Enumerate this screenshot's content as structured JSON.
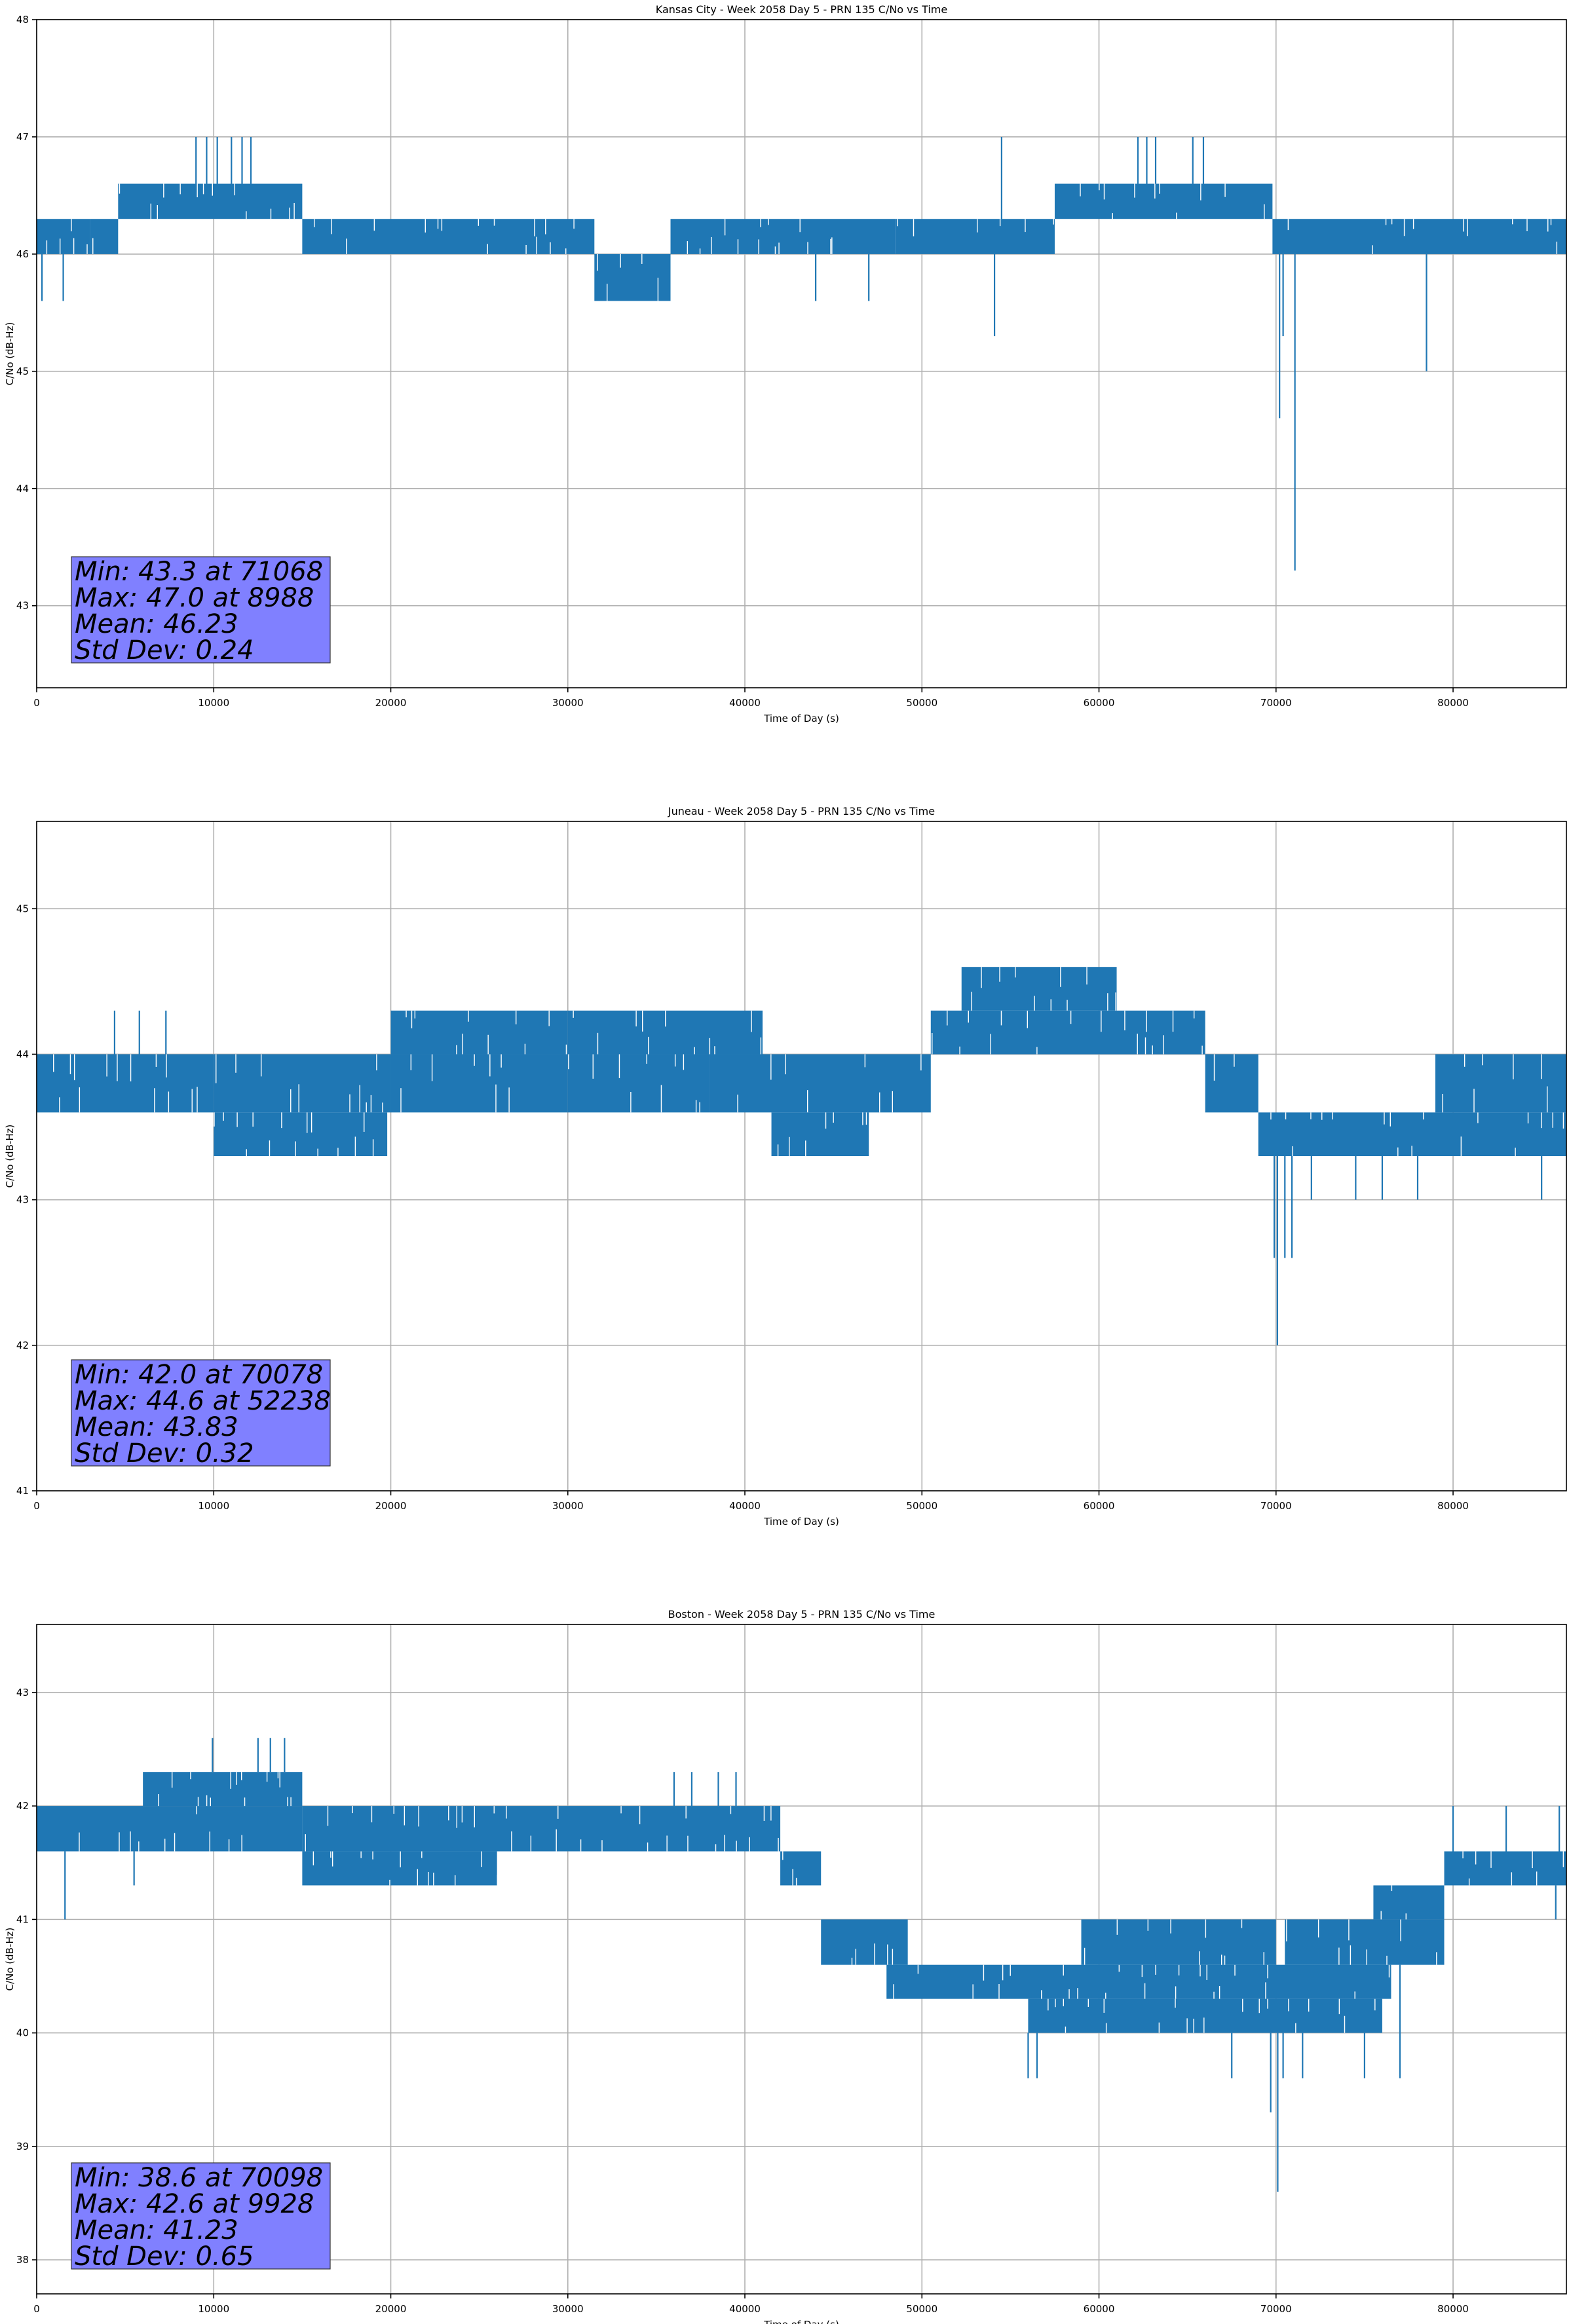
{
  "chart_data": [
    {
      "type": "line",
      "title": "Kansas City - Week 2058 Day 5 - PRN 135 C/No vs Time",
      "xlabel": "Time of Day (s)",
      "ylabel": "C/No (dB-Hz)",
      "xlim": [
        0,
        86400
      ],
      "ylim": [
        42.3,
        48.0
      ],
      "xticks": [
        0,
        10000,
        20000,
        30000,
        40000,
        50000,
        60000,
        70000,
        80000
      ],
      "yticks": [
        43,
        44,
        45,
        46,
        47,
        48
      ],
      "grid": true,
      "color": "#1f77b4",
      "stats": [
        "Min: 43.3 at 71068",
        "Max: 47.0 at 8988",
        "Mean: 46.23",
        "Std Dev: 0.24"
      ],
      "series": [
        {
          "segments": [
            {
              "x": [
                0,
                3000,
                4600
              ],
              "lo": [
                46.0,
                46.0,
                46.0
              ],
              "hi": [
                46.3,
                46.3,
                46.3
              ]
            },
            {
              "x": [
                4600,
                15000
              ],
              "lo": [
                46.3,
                46.3
              ],
              "hi": [
                46.6,
                46.6
              ]
            },
            {
              "x": [
                15000,
                31500
              ],
              "lo": [
                46.0,
                46.0
              ],
              "hi": [
                46.3,
                46.3
              ]
            },
            {
              "x": [
                31500,
                35800
              ],
              "lo": [
                45.6,
                45.6
              ],
              "hi": [
                46.0,
                46.0
              ]
            },
            {
              "x": [
                35800,
                48500
              ],
              "lo": [
                46.0,
                46.0
              ],
              "hi": [
                46.3,
                46.3
              ]
            },
            {
              "x": [
                48500,
                57500
              ],
              "lo": [
                46.0,
                46.0
              ],
              "hi": [
                46.3,
                46.3
              ]
            },
            {
              "x": [
                57500,
                69800
              ],
              "lo": [
                46.3,
                46.3
              ],
              "hi": [
                46.6,
                46.6
              ]
            },
            {
              "x": [
                69800,
                86400
              ],
              "lo": [
                46.0,
                46.0
              ],
              "hi": [
                46.3,
                46.3
              ]
            }
          ],
          "spikes": [
            {
              "x": 300,
              "y": 45.6
            },
            {
              "x": 1500,
              "y": 45.6
            },
            {
              "x": 9000,
              "y": 47.0
            },
            {
              "x": 9600,
              "y": 47.0
            },
            {
              "x": 10200,
              "y": 47.0
            },
            {
              "x": 11000,
              "y": 47.0
            },
            {
              "x": 11600,
              "y": 47.0
            },
            {
              "x": 12100,
              "y": 47.0
            },
            {
              "x": 44000,
              "y": 45.6
            },
            {
              "x": 47000,
              "y": 45.6
            },
            {
              "x": 54100,
              "y": 45.3
            },
            {
              "x": 54500,
              "y": 47.0
            },
            {
              "x": 62200,
              "y": 47.0
            },
            {
              "x": 62700,
              "y": 47.0
            },
            {
              "x": 63200,
              "y": 47.0
            },
            {
              "x": 65300,
              "y": 47.0
            },
            {
              "x": 65900,
              "y": 47.0
            },
            {
              "x": 70200,
              "y": 44.6
            },
            {
              "x": 70400,
              "y": 45.3
            },
            {
              "x": 71068,
              "y": 43.3
            },
            {
              "x": 78500,
              "y": 45.0
            }
          ]
        }
      ]
    },
    {
      "type": "line",
      "title": "Juneau - Week 2058 Day 5 - PRN 135 C/No vs Time",
      "xlabel": "Time of Day (s)",
      "ylabel": "C/No (dB-Hz)",
      "xlim": [
        0,
        86400
      ],
      "ylim": [
        41.0,
        45.6
      ],
      "xticks": [
        0,
        10000,
        20000,
        30000,
        40000,
        50000,
        60000,
        70000,
        80000
      ],
      "yticks": [
        41,
        42,
        43,
        44,
        45
      ],
      "grid": true,
      "color": "#1f77b4",
      "stats": [
        "Min: 42.0 at 70078",
        "Max: 44.6 at 52238",
        "Mean: 43.83",
        "Std Dev: 0.32"
      ],
      "series": [
        {
          "segments": [
            {
              "x": [
                0,
                10000,
                20000,
                30000
              ],
              "lo": [
                43.6,
                43.6,
                43.6,
                43.6
              ],
              "hi": [
                44.0,
                44.0,
                44.0,
                44.0
              ]
            },
            {
              "x": [
                10000,
                19800
              ],
              "lo": [
                43.3,
                43.3
              ],
              "hi": [
                43.6,
                43.6
              ]
            },
            {
              "x": [
                20000,
                30000
              ],
              "lo": [
                44.0,
                44.0
              ],
              "hi": [
                44.3,
                44.3
              ]
            },
            {
              "x": [
                30000,
                38000
              ],
              "lo": [
                43.6,
                43.6
              ],
              "hi": [
                44.0,
                44.0
              ]
            },
            {
              "x": [
                30000,
                41000
              ],
              "lo": [
                44.0,
                44.0
              ],
              "hi": [
                44.3,
                44.3
              ]
            },
            {
              "x": [
                38000,
                50500
              ],
              "lo": [
                43.6,
                43.6
              ],
              "hi": [
                44.0,
                44.0
              ]
            },
            {
              "x": [
                41500,
                47000
              ],
              "lo": [
                43.3,
                43.3
              ],
              "hi": [
                43.6,
                43.6
              ]
            },
            {
              "x": [
                50500,
                66000
              ],
              "lo": [
                44.0,
                44.0
              ],
              "hi": [
                44.3,
                44.3
              ]
            },
            {
              "x": [
                52238,
                61000
              ],
              "lo": [
                44.3,
                44.3
              ],
              "hi": [
                44.6,
                44.6
              ]
            },
            {
              "x": [
                66000,
                69000
              ],
              "lo": [
                43.6,
                43.6
              ],
              "hi": [
                44.0,
                44.0
              ]
            },
            {
              "x": [
                69000,
                86400
              ],
              "lo": [
                43.3,
                43.3
              ],
              "hi": [
                43.6,
                43.6
              ]
            },
            {
              "x": [
                79000,
                86400
              ],
              "lo": [
                43.6,
                43.6
              ],
              "hi": [
                44.0,
                44.0
              ]
            }
          ],
          "spikes": [
            {
              "x": 4400,
              "y": 44.3
            },
            {
              "x": 5800,
              "y": 44.3
            },
            {
              "x": 7300,
              "y": 44.3
            },
            {
              "x": 70078,
              "y": 42.0
            },
            {
              "x": 69900,
              "y": 42.6
            },
            {
              "x": 70500,
              "y": 42.6
            },
            {
              "x": 70900,
              "y": 42.6
            },
            {
              "x": 72000,
              "y": 43.0
            },
            {
              "x": 74500,
              "y": 43.0
            },
            {
              "x": 76000,
              "y": 43.0
            },
            {
              "x": 78000,
              "y": 43.0
            },
            {
              "x": 85000,
              "y": 43.0
            }
          ]
        }
      ]
    },
    {
      "type": "line",
      "title": "Boston - Week 2058 Day 5 - PRN 135 C/No vs Time",
      "xlabel": "Time of Day (s)",
      "ylabel": "C/No (dB-Hz)",
      "xlim": [
        0,
        86400
      ],
      "ylim": [
        37.7,
        43.6
      ],
      "xticks": [
        0,
        10000,
        20000,
        30000,
        40000,
        50000,
        60000,
        70000,
        80000
      ],
      "yticks": [
        38,
        39,
        40,
        41,
        42,
        43
      ],
      "grid": true,
      "color": "#1f77b4",
      "stats": [
        "Min: 38.6 at 70098",
        "Max: 42.6 at 9928",
        "Mean: 41.23",
        "Std Dev: 0.65"
      ],
      "series": [
        {
          "segments": [
            {
              "x": [
                0,
                15000
              ],
              "lo": [
                41.6,
                41.6
              ],
              "hi": [
                42.0,
                42.0
              ]
            },
            {
              "x": [
                6000,
                15000
              ],
              "lo": [
                42.0,
                42.0
              ],
              "hi": [
                42.3,
                42.3
              ]
            },
            {
              "x": [
                15000,
                26000
              ],
              "lo": [
                41.3,
                41.3
              ],
              "hi": [
                41.6,
                41.6
              ]
            },
            {
              "x": [
                15000,
                42000
              ],
              "lo": [
                41.6,
                41.6
              ],
              "hi": [
                42.0,
                42.0
              ]
            },
            {
              "x": [
                42000,
                44300
              ],
              "lo": [
                41.3,
                41.3
              ],
              "hi": [
                41.6,
                41.6
              ]
            },
            {
              "x": [
                44300,
                49200
              ],
              "lo": [
                40.6,
                40.6
              ],
              "hi": [
                41.0,
                41.0
              ]
            },
            {
              "x": [
                48000,
                76500
              ],
              "lo": [
                40.3,
                40.3
              ],
              "hi": [
                40.6,
                40.6
              ]
            },
            {
              "x": [
                56000,
                76000
              ],
              "lo": [
                40.0,
                40.0
              ],
              "hi": [
                40.3,
                40.3
              ]
            },
            {
              "x": [
                59000,
                70000
              ],
              "lo": [
                40.6,
                40.6
              ],
              "hi": [
                41.0,
                41.0
              ]
            },
            {
              "x": [
                70500,
                79500
              ],
              "lo": [
                40.6,
                40.6
              ],
              "hi": [
                41.0,
                41.0
              ]
            },
            {
              "x": [
                75500,
                79500
              ],
              "lo": [
                41.0,
                41.0
              ],
              "hi": [
                41.3,
                41.3
              ]
            },
            {
              "x": [
                79500,
                86400
              ],
              "lo": [
                41.3,
                41.3
              ],
              "hi": [
                41.6,
                41.6
              ]
            }
          ],
          "spikes": [
            {
              "x": 1600,
              "y": 41.0
            },
            {
              "x": 5500,
              "y": 41.3
            },
            {
              "x": 9928,
              "y": 42.6
            },
            {
              "x": 12500,
              "y": 42.6
            },
            {
              "x": 13200,
              "y": 42.6
            },
            {
              "x": 14000,
              "y": 42.6
            },
            {
              "x": 36000,
              "y": 42.3
            },
            {
              "x": 37000,
              "y": 42.3
            },
            {
              "x": 38500,
              "y": 42.3
            },
            {
              "x": 39500,
              "y": 42.3
            },
            {
              "x": 56000,
              "y": 39.6
            },
            {
              "x": 56500,
              "y": 39.6
            },
            {
              "x": 67500,
              "y": 39.6
            },
            {
              "x": 71500,
              "y": 39.6
            },
            {
              "x": 75000,
              "y": 39.6
            },
            {
              "x": 77000,
              "y": 39.6
            },
            {
              "x": 70098,
              "y": 38.6
            },
            {
              "x": 69700,
              "y": 39.3
            },
            {
              "x": 70400,
              "y": 39.6
            },
            {
              "x": 80000,
              "y": 42.0
            },
            {
              "x": 83000,
              "y": 42.0
            },
            {
              "x": 86000,
              "y": 42.0
            },
            {
              "x": 85800,
              "y": 41.0
            }
          ]
        }
      ]
    }
  ]
}
